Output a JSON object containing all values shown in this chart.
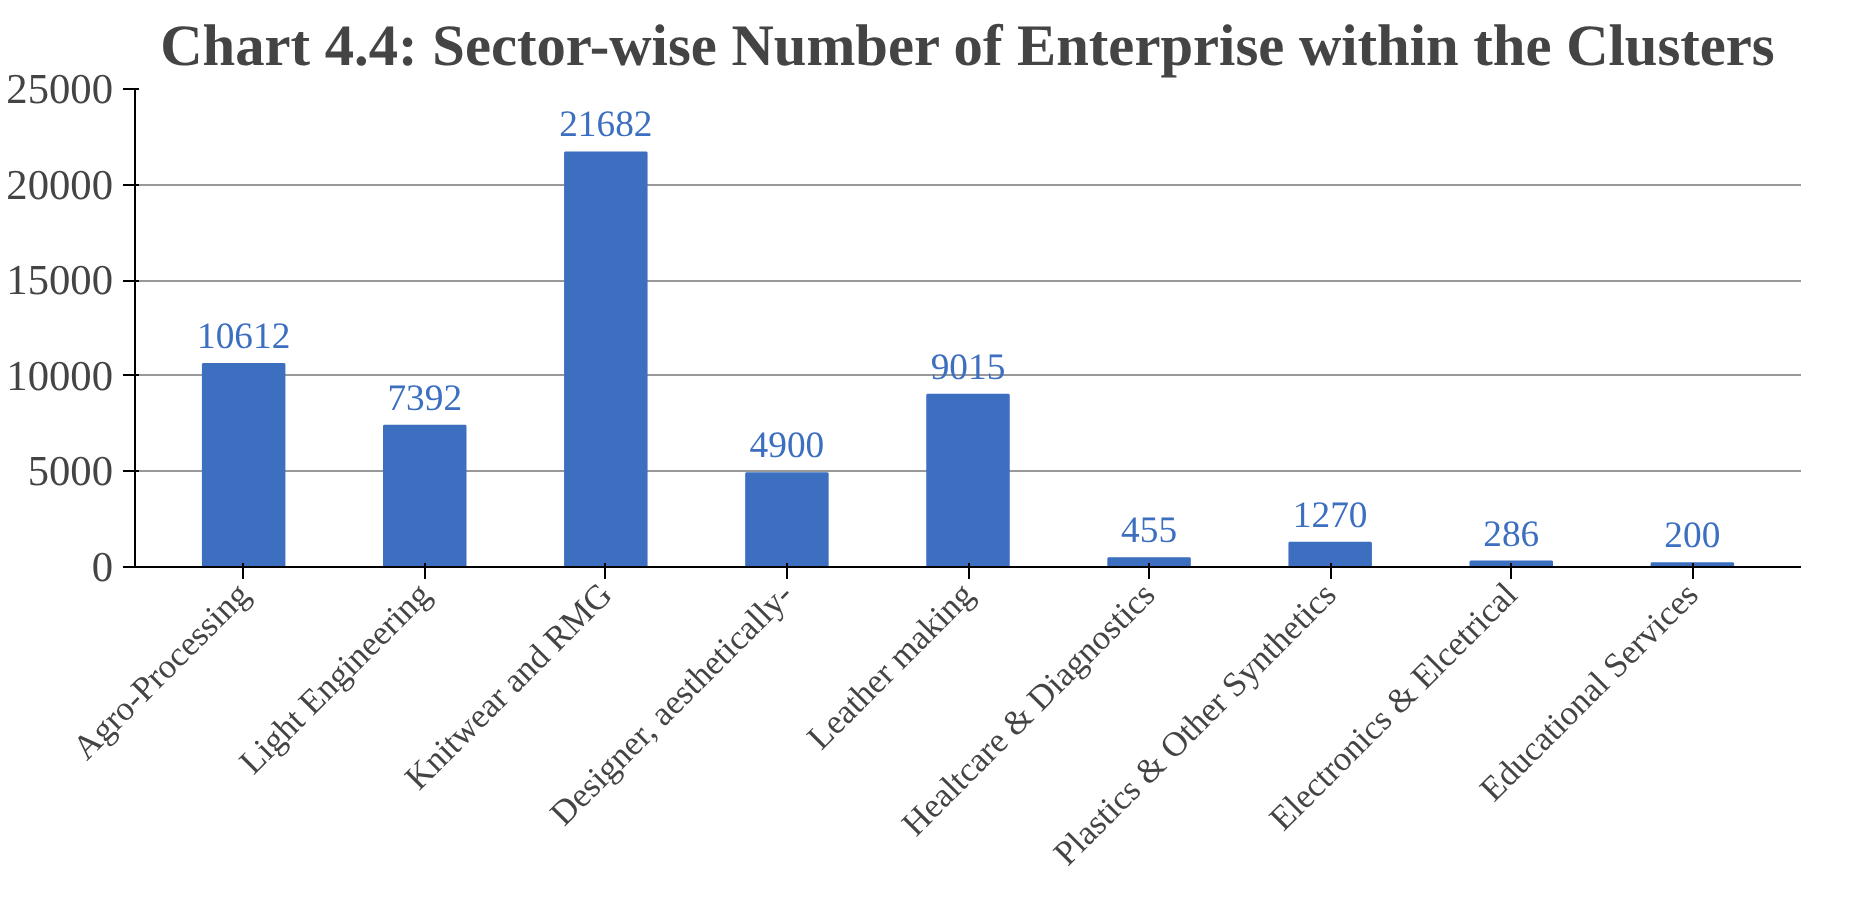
{
  "chart_data": {
    "type": "bar",
    "title": "Chart 4.4: Sector-wise Number of Enterprise within the Clusters",
    "categories": [
      "Agro-Processing",
      "Light Engineering",
      "Knitwear and RMG",
      "Designer, aesthetically-",
      "Leather making",
      "Healtcare & Diagnostics",
      "Plastics & Other Synthetics",
      "Electronics & Elcetrical",
      "Educational Services"
    ],
    "values": [
      10612,
      7392,
      21682,
      4900,
      9015,
      455,
      1270,
      286,
      200
    ],
    "color": "#3d6fc0",
    "ylim": [
      0,
      25000
    ],
    "yticks": [
      0,
      5000,
      10000,
      15000,
      20000,
      25000
    ],
    "grid": "y",
    "data_labels": true
  }
}
